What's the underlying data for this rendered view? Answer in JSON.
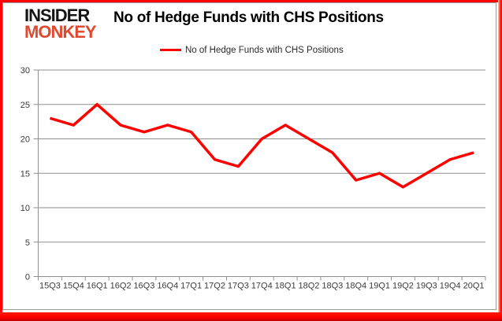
{
  "logo": {
    "line1": "INSIDER",
    "line2": "MONKEY"
  },
  "header": {
    "title": "No of Hedge Funds with CHS Positions"
  },
  "legend": {
    "label": "No of Hedge Funds with CHS Positions"
  },
  "colors": {
    "line": "#fe0000",
    "border_red": "#fe0202",
    "grid": "#8f8f8f",
    "axis": "#8f8f8f",
    "tick_text": "#3b3b3b",
    "logo_black": "#151515",
    "logo_red": "#df4930"
  },
  "chart_data": {
    "type": "line",
    "title": "No of Hedge Funds with CHS Positions",
    "categories": [
      "15Q3",
      "15Q4",
      "16Q1",
      "16Q2",
      "16Q3",
      "16Q4",
      "17Q1",
      "17Q2",
      "17Q3",
      "17Q4",
      "18Q1",
      "18Q2",
      "18Q3",
      "18Q4",
      "19Q1",
      "19Q2",
      "19Q3",
      "19Q4",
      "20Q1"
    ],
    "series": [
      {
        "name": "No of Hedge Funds with CHS Positions",
        "values": [
          23,
          22,
          25,
          22,
          21,
          22,
          21,
          17,
          16,
          20,
          22,
          20,
          18,
          14,
          15,
          13,
          15,
          17,
          18
        ]
      }
    ],
    "xlabel": "",
    "ylabel": "",
    "ylim": [
      0,
      30
    ],
    "yticks": [
      0,
      5,
      10,
      15,
      20,
      25,
      30
    ],
    "grid": true,
    "legend_position": "top"
  }
}
